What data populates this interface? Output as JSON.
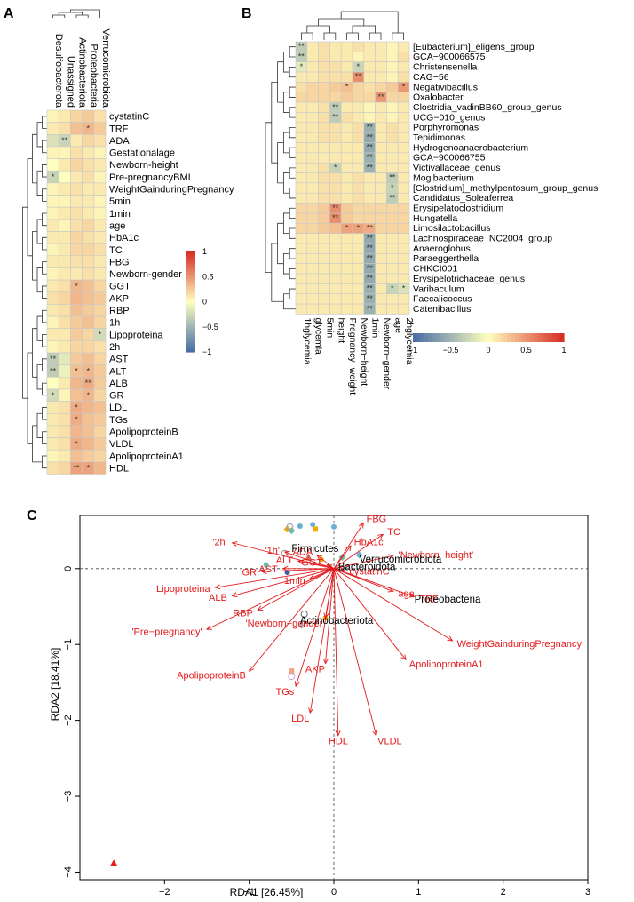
{
  "panels": {
    "a": "A",
    "b": "B",
    "c": "C"
  },
  "colors": {
    "low": "#4a6fa5",
    "mid": "#ffffbf",
    "high": "#d73027",
    "grid": "#c8c8c8",
    "tree": "#333333",
    "arrow": "#e41a1c",
    "species": "#000000"
  },
  "chart_data": [
    {
      "type": "heatmap",
      "panel": "A",
      "columns": [
        "Desulfobacterota",
        "Unassigned",
        "Actinobacteriota",
        "Proteobacteria",
        "Verrucomicrobiota"
      ],
      "rows": [
        "cystatinC",
        "TRF",
        "ADA",
        "Gestationalage",
        "Newborn-height",
        "Pre-pregnancyBMI",
        "WeightGainduringPregnancy",
        "5min",
        "1min",
        "age",
        "HbA1c",
        "TC",
        "FBG",
        "Newborn-gender",
        "GGT",
        "AKP",
        "RBP",
        "1h",
        "Lipoproteina",
        "2h",
        "AST",
        "ALT",
        "ALB",
        "GR",
        "LDL",
        "TGs",
        "ApolipoproteinB",
        "VLDL",
        "ApolipoproteinA1",
        "HDL"
      ],
      "values": [
        [
          0.05,
          0.1,
          0.2,
          0.25,
          0.15
        ],
        [
          0.1,
          0.15,
          0.3,
          0.35,
          0.25
        ],
        [
          -0.2,
          -0.3,
          0.1,
          0.2,
          0.15
        ],
        [
          0.05,
          0.05,
          0.15,
          0.1,
          0.05
        ],
        [
          0.0,
          0.1,
          0.2,
          0.15,
          0.1
        ],
        [
          -0.3,
          0.0,
          0.1,
          0.15,
          0.05
        ],
        [
          0.05,
          0.1,
          0.15,
          0.1,
          0.1
        ],
        [
          0.05,
          0.05,
          0.1,
          0.1,
          0.05
        ],
        [
          0.05,
          0.1,
          0.15,
          0.1,
          0.05
        ],
        [
          0.1,
          0.05,
          0.15,
          0.2,
          0.1
        ],
        [
          0.1,
          0.1,
          0.2,
          0.15,
          0.1
        ],
        [
          0.05,
          0.1,
          0.2,
          0.2,
          0.15
        ],
        [
          0.1,
          0.1,
          0.15,
          0.15,
          0.1
        ],
        [
          0.05,
          0.1,
          0.1,
          0.15,
          0.1
        ],
        [
          0.1,
          0.15,
          0.35,
          0.3,
          0.2
        ],
        [
          0.15,
          0.2,
          0.35,
          0.3,
          0.25
        ],
        [
          0.1,
          0.15,
          0.3,
          0.25,
          0.2
        ],
        [
          0.05,
          0.15,
          0.25,
          0.3,
          0.2
        ],
        [
          0.1,
          0.1,
          0.25,
          0.2,
          -0.25
        ],
        [
          0.05,
          0.1,
          0.2,
          0.2,
          0.15
        ],
        [
          -0.35,
          -0.15,
          0.25,
          0.3,
          0.2
        ],
        [
          -0.35,
          -0.1,
          0.3,
          0.35,
          0.25
        ],
        [
          0.0,
          0.1,
          0.35,
          0.4,
          0.25
        ],
        [
          -0.25,
          0.05,
          0.3,
          0.35,
          0.2
        ],
        [
          0.1,
          0.15,
          0.4,
          0.35,
          0.3
        ],
        [
          0.1,
          0.15,
          0.4,
          0.3,
          0.25
        ],
        [
          0.1,
          0.15,
          0.35,
          0.3,
          0.2
        ],
        [
          0.1,
          0.15,
          0.4,
          0.35,
          0.25
        ],
        [
          0.05,
          0.1,
          0.3,
          0.25,
          0.2
        ],
        [
          0.15,
          0.2,
          0.45,
          0.45,
          0.35
        ]
      ],
      "stars": [
        [
          1,
          3,
          "*"
        ],
        [
          2,
          1,
          "**"
        ],
        [
          5,
          0,
          "*"
        ],
        [
          14,
          2,
          "*"
        ],
        [
          18,
          4,
          "*"
        ],
        [
          20,
          0,
          "**"
        ],
        [
          21,
          0,
          "**"
        ],
        [
          21,
          2,
          "*"
        ],
        [
          21,
          3,
          "*"
        ],
        [
          22,
          3,
          "**"
        ],
        [
          23,
          0,
          "*"
        ],
        [
          23,
          3,
          "*"
        ],
        [
          24,
          2,
          "*"
        ],
        [
          25,
          2,
          "*"
        ],
        [
          27,
          2,
          "*"
        ],
        [
          29,
          2,
          "**"
        ],
        [
          29,
          3,
          "*"
        ]
      ],
      "colorbar": {
        "ticks": [
          "1",
          "0.5",
          "0",
          "−0.5",
          "−1"
        ]
      }
    },
    {
      "type": "heatmap",
      "panel": "B",
      "columns": [
        "1hglycemia",
        "glycemia",
        "5min",
        "height",
        "Pregnancy−weight",
        "Newborn−height",
        "1min",
        "Newborn−gender",
        "age",
        "2hglycemia"
      ],
      "rows": [
        "[Eubacterium]_eligens_group",
        "GCA−900066575",
        "Christensenella",
        "CAG−56",
        "Negativibacillus",
        "Oxalobacter",
        "Clostridia_vadinBB60_group_genus",
        "UCG−010_genus",
        "Porphyromonas",
        "Tepidimonas",
        "Hydrogenoanaerobacterium",
        "GCA−900066755",
        "Victivallaceae_genus",
        "Mogibacterium",
        "[Clostridium]_methylpentosum_group_genus",
        "Candidatus_Soleaferrea",
        "Erysipelatoclostridium",
        "Hungatella",
        "Limosilactobacillus",
        "Lachnospiraceae_NC2004_group",
        "Anaeroglobus",
        "Paraeggerthella",
        "CHKCI001",
        "Erysipelotrichaceae_genus",
        "Varibaculum",
        "Faecalicoccus",
        "Catenibacillus"
      ],
      "values": [
        [
          -0.35,
          0.1,
          0.15,
          0.1,
          0.1,
          0.15,
          0.1,
          0.1,
          0.05,
          0.1
        ],
        [
          -0.35,
          0.1,
          0.15,
          0.1,
          0.1,
          0.05,
          0.1,
          0.1,
          0.05,
          0.15
        ],
        [
          -0.15,
          0.1,
          0.15,
          0.15,
          0.1,
          -0.3,
          0.1,
          0.1,
          0.05,
          0.1
        ],
        [
          0.1,
          0.1,
          0.15,
          0.15,
          0.15,
          0.55,
          0.1,
          0.1,
          0.05,
          0.15
        ],
        [
          0.15,
          0.2,
          0.2,
          0.25,
          0.3,
          0.2,
          0.15,
          0.2,
          0.25,
          0.5
        ],
        [
          0.2,
          0.2,
          0.2,
          0.2,
          0.25,
          0.2,
          0.2,
          0.5,
          0.2,
          0.2
        ],
        [
          0.1,
          0.1,
          0.15,
          -0.35,
          0.1,
          0.1,
          0.05,
          0.1,
          0.05,
          0.1
        ],
        [
          0.1,
          0.1,
          0.15,
          -0.35,
          0.15,
          0.1,
          0.05,
          0.1,
          0.05,
          0.1
        ],
        [
          0.1,
          0.1,
          0.15,
          0.15,
          0.1,
          0.15,
          -0.55,
          0.1,
          0.15,
          0.1
        ],
        [
          0.1,
          0.1,
          0.15,
          0.15,
          0.1,
          0.15,
          -0.6,
          0.1,
          0.15,
          0.1
        ],
        [
          0.1,
          0.1,
          0.1,
          0.1,
          0.1,
          0.1,
          -0.6,
          0.1,
          0.1,
          0.1
        ],
        [
          0.1,
          0.1,
          0.1,
          0.1,
          0.1,
          0.1,
          -0.55,
          0.1,
          0.1,
          0.1
        ],
        [
          0.1,
          0.1,
          0.15,
          -0.3,
          0.1,
          0.1,
          -0.55,
          0.1,
          0.1,
          0.1
        ],
        [
          0.1,
          0.1,
          0.15,
          0.15,
          0.1,
          0.15,
          0.1,
          0.1,
          -0.35,
          0.1
        ],
        [
          0.1,
          0.1,
          0.15,
          0.15,
          0.1,
          0.15,
          0.1,
          0.1,
          -0.3,
          0.1
        ],
        [
          0.1,
          0.1,
          0.15,
          0.15,
          0.1,
          0.15,
          0.1,
          0.1,
          -0.35,
          0.1
        ],
        [
          0.2,
          0.2,
          0.25,
          0.55,
          0.25,
          0.2,
          0.2,
          0.2,
          0.2,
          0.2
        ],
        [
          0.2,
          0.2,
          0.25,
          0.55,
          0.25,
          0.2,
          0.2,
          0.2,
          0.2,
          0.2
        ],
        [
          0.2,
          0.2,
          0.25,
          0.3,
          0.45,
          0.45,
          0.4,
          0.2,
          0.2,
          0.2
        ],
        [
          0.1,
          0.1,
          0.1,
          0.1,
          0.1,
          0.1,
          -0.6,
          0.1,
          0.1,
          0.1
        ],
        [
          0.1,
          0.1,
          0.1,
          0.1,
          0.1,
          0.1,
          -0.6,
          0.1,
          0.1,
          0.1
        ],
        [
          0.1,
          0.1,
          0.1,
          0.1,
          0.1,
          0.1,
          -0.6,
          0.1,
          0.1,
          0.1
        ],
        [
          0.1,
          0.1,
          0.1,
          0.1,
          0.1,
          0.1,
          -0.6,
          0.1,
          0.1,
          0.1
        ],
        [
          0.1,
          0.1,
          0.1,
          0.1,
          0.1,
          0.1,
          -0.6,
          0.1,
          0.1,
          0.1
        ],
        [
          0.1,
          0.1,
          0.1,
          0.1,
          0.1,
          0.1,
          -0.55,
          0.1,
          -0.3,
          -0.2
        ],
        [
          0.1,
          0.1,
          0.1,
          0.1,
          0.1,
          0.1,
          -0.55,
          0.1,
          0.1,
          0.1
        ],
        [
          0.1,
          0.1,
          0.1,
          0.1,
          0.1,
          0.1,
          -0.55,
          0.1,
          0.1,
          0.1
        ]
      ],
      "stars": [
        [
          0,
          0,
          "**"
        ],
        [
          1,
          0,
          "**"
        ],
        [
          2,
          0,
          "*"
        ],
        [
          2,
          5,
          "*"
        ],
        [
          3,
          5,
          "**"
        ],
        [
          4,
          4,
          "*"
        ],
        [
          4,
          9,
          "*"
        ],
        [
          5,
          7,
          "**"
        ],
        [
          6,
          3,
          "**"
        ],
        [
          7,
          3,
          "**"
        ],
        [
          8,
          6,
          "**"
        ],
        [
          9,
          6,
          "**"
        ],
        [
          10,
          6,
          "**"
        ],
        [
          11,
          6,
          "**"
        ],
        [
          12,
          3,
          "*"
        ],
        [
          12,
          6,
          "**"
        ],
        [
          13,
          8,
          "**"
        ],
        [
          14,
          8,
          "*"
        ],
        [
          15,
          8,
          "**"
        ],
        [
          16,
          3,
          "**"
        ],
        [
          17,
          3,
          "**"
        ],
        [
          18,
          4,
          "*"
        ],
        [
          18,
          5,
          "*"
        ],
        [
          18,
          6,
          "**"
        ],
        [
          19,
          6,
          "**"
        ],
        [
          20,
          6,
          "**"
        ],
        [
          21,
          6,
          "**"
        ],
        [
          22,
          6,
          "**"
        ],
        [
          23,
          6,
          "**"
        ],
        [
          24,
          6,
          "**"
        ],
        [
          24,
          8,
          "*"
        ],
        [
          24,
          9,
          "*"
        ],
        [
          25,
          6,
          "**"
        ],
        [
          26,
          6,
          "**"
        ]
      ],
      "colorbar": {
        "ticks": [
          "−1",
          "−0.5",
          "0",
          "0.5",
          "1"
        ]
      }
    },
    {
      "type": "scatter",
      "panel": "C",
      "xlabel": "RDA1  [26.45%]",
      "ylabel": "RDA2  [18.41%]",
      "xlim": [
        -3.0,
        3.0
      ],
      "ylim": [
        -4.1,
        0.7
      ],
      "xticks": [
        "−2",
        "−1",
        "0",
        "1",
        "2",
        "3"
      ],
      "yticks": [
        "0",
        "−1",
        "−2",
        "−3",
        "−4"
      ],
      "arrows": [
        {
          "label": "FBG",
          "x": 0.35,
          "y": 0.6
        },
        {
          "label": "TC",
          "x": 0.58,
          "y": 0.45
        },
        {
          "label": "HbA1c",
          "x": 0.2,
          "y": 0.3
        },
        {
          "label": "'Newborn−height'",
          "x": 0.7,
          "y": 0.17
        },
        {
          "label": "'2h'",
          "x": -1.2,
          "y": 0.34
        },
        {
          "label": "'1h'",
          "x": -0.58,
          "y": 0.22
        },
        {
          "label": "ADA",
          "x": -0.2,
          "y": 0.18
        },
        {
          "label": "GGT",
          "x": -0.08,
          "y": 0.05
        },
        {
          "label": "ALT",
          "x": -0.42,
          "y": 0.1
        },
        {
          "label": "cystatinC",
          "x": 0.12,
          "y": -0.02
        },
        {
          "label": "AST",
          "x": -0.6,
          "y": 0.0
        },
        {
          "label": "GR",
          "x": -0.85,
          "y": -0.04
        },
        {
          "label": "Lipoproteina",
          "x": -1.4,
          "y": -0.25
        },
        {
          "label": "ALB",
          "x": -1.2,
          "y": -0.36
        },
        {
          "label": "RBP",
          "x": -0.9,
          "y": -0.55
        },
        {
          "label": "age",
          "x": 0.7,
          "y": -0.3
        },
        {
          "label": "TRF",
          "x": 0.95,
          "y": -0.37
        },
        {
          "label": "1min",
          "x": -0.28,
          "y": -0.13
        },
        {
          "label": "'Newborn−gender'",
          "x": -0.1,
          "y": -0.65
        },
        {
          "label": "'Pre−pregnancy'",
          "x": -1.5,
          "y": -0.8
        },
        {
          "label": "WeightGainduringPregnancy",
          "x": 1.4,
          "y": -0.95
        },
        {
          "label": "ApolipoproteinA1",
          "x": 0.85,
          "y": -1.2
        },
        {
          "label": "AKP",
          "x": -0.1,
          "y": -1.25
        },
        {
          "label": "ApolipoproteinB",
          "x": -1.0,
          "y": -1.35
        },
        {
          "label": "TGs",
          "x": -0.45,
          "y": -1.55
        },
        {
          "label": "LDL",
          "x": -0.28,
          "y": -1.9
        },
        {
          "label": "VLDL",
          "x": 0.5,
          "y": -2.2
        },
        {
          "label": "HDL",
          "x": 0.05,
          "y": -2.2
        }
      ],
      "species": [
        {
          "label": "Firmicutes",
          "x": -0.5,
          "y": 0.22
        },
        {
          "label": "Verrucomicrobiota",
          "x": 0.3,
          "y": 0.08
        },
        {
          "label": "Bacteroidota",
          "x": 0.05,
          "y": -0.02
        },
        {
          "label": "Proteobacteria",
          "x": 0.95,
          "y": -0.45
        },
        {
          "label": "Actinobacteriota",
          "x": -0.4,
          "y": -0.73
        }
      ],
      "points": [
        {
          "x": -0.55,
          "y": 0.52,
          "color": "#f2a900",
          "shape": "diamond"
        },
        {
          "x": -0.5,
          "y": 0.5,
          "color": "#66c2a5",
          "shape": "diamond"
        },
        {
          "x": -0.52,
          "y": 0.55,
          "color": "#9e9ac8",
          "shape": "circle-open"
        },
        {
          "x": -0.4,
          "y": 0.56,
          "color": "#6baed6",
          "shape": "circle"
        },
        {
          "x": -0.25,
          "y": 0.58,
          "color": "#6baed6",
          "shape": "circle"
        },
        {
          "x": 0.0,
          "y": 0.55,
          "color": "#6baed6",
          "shape": "circle"
        },
        {
          "x": -0.22,
          "y": 0.52,
          "color": "#f2a900",
          "shape": "square"
        },
        {
          "x": -0.58,
          "y": 0.2,
          "color": "#999999",
          "shape": "circle-open"
        },
        {
          "x": -0.3,
          "y": 0.15,
          "color": "#d6604d",
          "shape": "triangle"
        },
        {
          "x": 0.1,
          "y": 0.15,
          "color": "#66c2a5",
          "shape": "diamond"
        },
        {
          "x": 0.3,
          "y": 0.18,
          "color": "#6baed6",
          "shape": "diamond"
        },
        {
          "x": -0.15,
          "y": 0.12,
          "color": "#f2a900",
          "shape": "circle"
        },
        {
          "x": -0.8,
          "y": 0.05,
          "color": "#66c2a5",
          "shape": "circle"
        },
        {
          "x": -0.55,
          "y": -0.05,
          "color": "#3f5f9a",
          "shape": "circle"
        },
        {
          "x": -0.35,
          "y": -0.6,
          "color": "#666666",
          "shape": "circle-open"
        },
        {
          "x": -0.38,
          "y": -0.75,
          "color": "#bdbdbd",
          "shape": "diamond"
        },
        {
          "x": -0.1,
          "y": -0.65,
          "color": "#f2a900",
          "shape": "circle"
        },
        {
          "x": -0.5,
          "y": -1.35,
          "color": "#f4a582",
          "shape": "square"
        },
        {
          "x": -0.5,
          "y": -1.42,
          "color": "#c2a5cf",
          "shape": "circle-open"
        },
        {
          "x": -2.6,
          "y": -3.88,
          "color": "#e41a1c",
          "shape": "triangle"
        }
      ]
    }
  ]
}
